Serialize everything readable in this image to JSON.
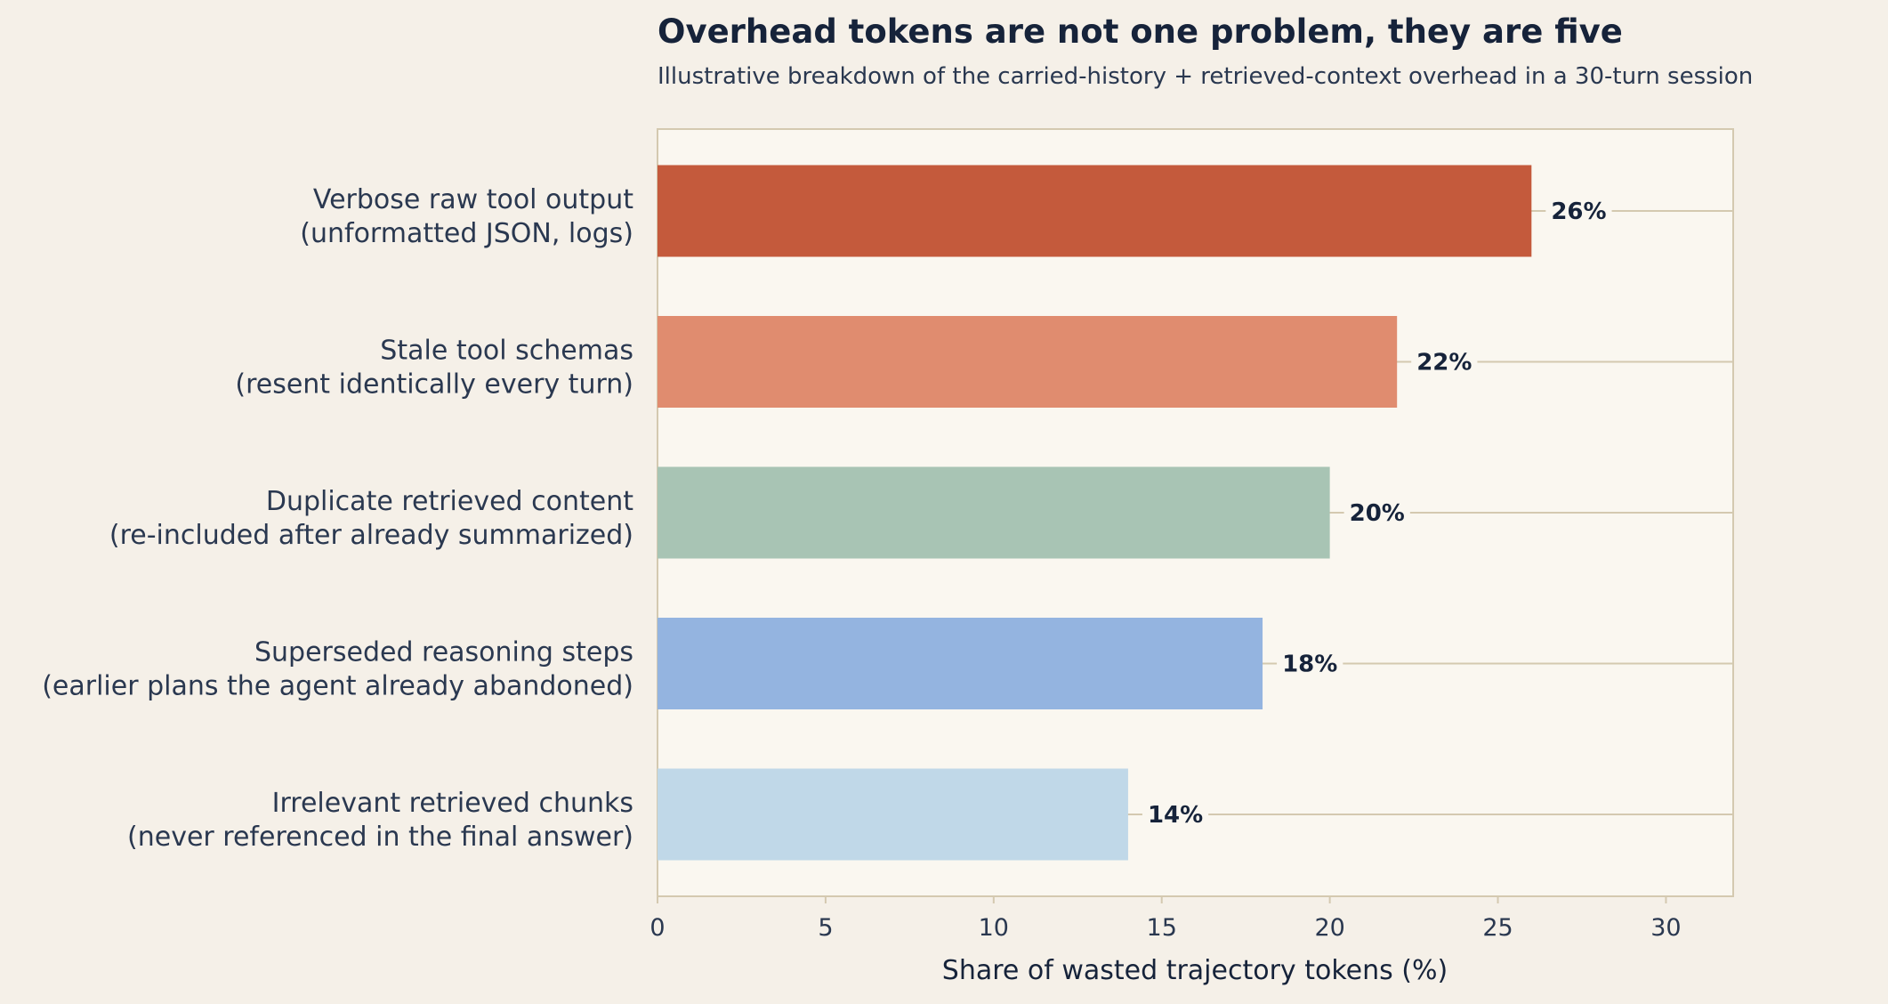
{
  "chart_data": {
    "type": "bar",
    "orientation": "horizontal",
    "title": "Overhead tokens are not one problem, they are five",
    "subtitle": "Illustrative breakdown of the carried-history + retrieved-context overhead in a 30-turn session",
    "xlabel": "Share of wasted trajectory tokens (%)",
    "ylabel": "",
    "xlim": [
      0,
      32
    ],
    "xticks": [
      0,
      5,
      10,
      15,
      20,
      25,
      30
    ],
    "grid": "horizontal lines at each category",
    "categories": [
      {
        "line1": "Verbose raw tool output",
        "line2": "(unformatted JSON, logs)"
      },
      {
        "line1": "Stale tool schemas",
        "line2": "(resent identically every turn)"
      },
      {
        "line1": "Duplicate retrieved content",
        "line2": "(re-included after already summarized)"
      },
      {
        "line1": "Superseded reasoning steps",
        "line2": "(earlier plans the agent already abandoned)"
      },
      {
        "line1": "Irrelevant retrieved chunks",
        "line2": "(never referenced in the final answer)"
      }
    ],
    "values": [
      26,
      22,
      20,
      18,
      14
    ],
    "data_labels": [
      "26%",
      "22%",
      "20%",
      "18%",
      "14%"
    ],
    "colors": [
      "#c45a3c",
      "#e08c6f",
      "#a8c4b4",
      "#94b4e0",
      "#c0d8e8"
    ]
  },
  "style": {
    "page_background": "#f5f0e8",
    "plot_background": "#faf7f0",
    "frame_color": "#d4c9b0",
    "grid_color": "#d4c9b0"
  }
}
